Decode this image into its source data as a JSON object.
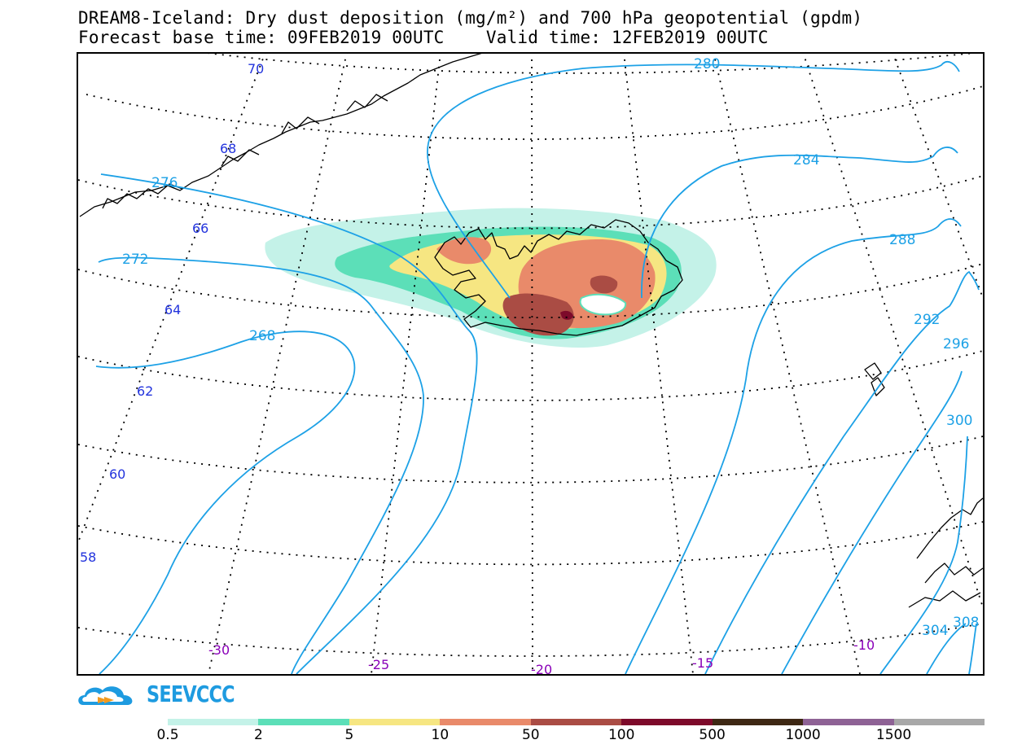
{
  "title": {
    "line1": "DREAM8-Iceland: Dry dust deposition (mg/m²) and 700 hPa geopotential (gpdm)",
    "line2": "Forecast base time: 09FEB2019 00UTC    Valid time: 12FEB2019 00UTC"
  },
  "map": {
    "latitude_labels": [
      "70",
      "68",
      "66",
      "64",
      "62",
      "60",
      "58"
    ],
    "longitude_labels": [
      "-30",
      "-25",
      "-20",
      "-15",
      "-10"
    ],
    "contour_labels": [
      "280",
      "276",
      "284",
      "272",
      "288",
      "268",
      "292",
      "296",
      "300",
      "304",
      "308"
    ],
    "colors": {
      "geopotential": "#1da1e6",
      "graticule": "#000000",
      "coastline": "#000000"
    }
  },
  "logo": {
    "text": "SEEVCCC",
    "icon": "cloud-icon"
  },
  "legend": {
    "thresholds": [
      "0.5",
      "2",
      "5",
      "10",
      "50",
      "100",
      "500",
      "1000",
      "1500"
    ],
    "colors": [
      "#c4f2e8",
      "#5cdfb8",
      "#f6e682",
      "#e98a6a",
      "#aa4c44",
      "#7d0a2a",
      "#3e2814",
      "#8e6295",
      "#a8a8a8"
    ]
  }
}
